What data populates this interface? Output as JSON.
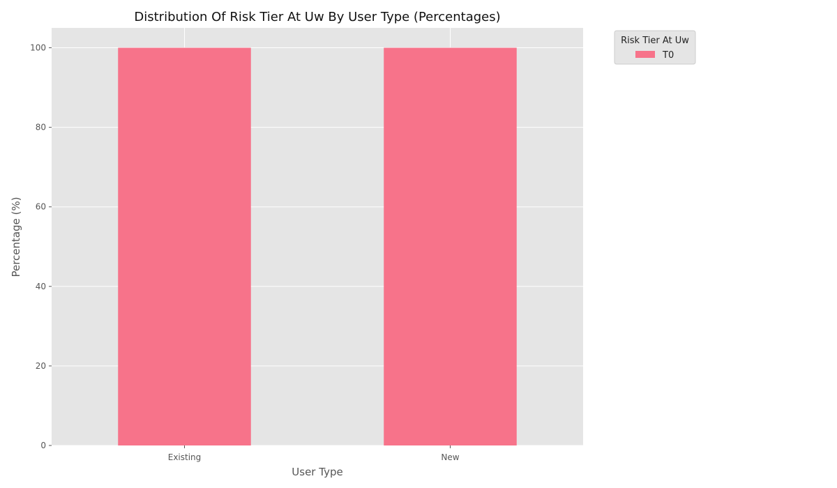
{
  "chart_data": {
    "type": "bar",
    "stacked": true,
    "title": "Distribution Of Risk Tier At Uw By User Type (Percentages)",
    "xlabel": "User Type",
    "ylabel": "Percentage (%)",
    "categories": [
      "Existing",
      "New"
    ],
    "series": [
      {
        "name": "T0",
        "values": [
          100,
          100
        ],
        "color": "#f7738a"
      }
    ],
    "ylim": [
      0,
      105
    ],
    "yticks": [
      0,
      20,
      40,
      60,
      80,
      100
    ],
    "grid": true,
    "legend": {
      "title": "Risk Tier At Uw",
      "placement": "outside-top-right"
    },
    "colors": {
      "plot_background": "#e5e5e5",
      "grid": "#ffffff",
      "bar": "#f7738a"
    }
  }
}
